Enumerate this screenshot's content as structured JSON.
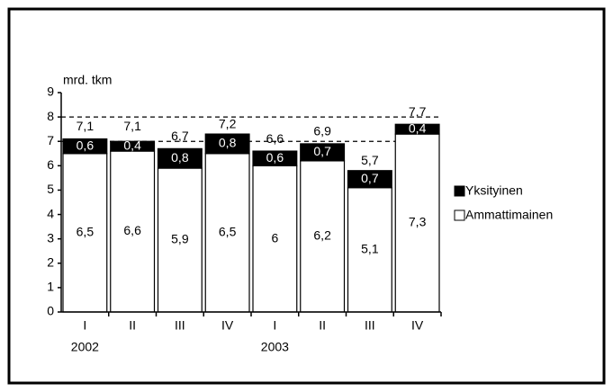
{
  "chart_data": {
    "type": "stacked_bar",
    "ylabel": "mrd. tkm",
    "categories": [
      "I",
      "II",
      "III",
      "IV",
      "I",
      "II",
      "III",
      "IV"
    ],
    "year_labels": [
      "2002",
      null,
      null,
      null,
      "2003",
      null,
      null,
      null
    ],
    "series": [
      {
        "name": "Ammattimainen",
        "color": "#ffffff",
        "label_color": "#000000",
        "values": [
          6.5,
          6.6,
          5.9,
          6.5,
          6,
          6.2,
          5.1,
          7.3
        ],
        "value_labels": [
          "6,5",
          "6,6",
          "5,9",
          "6,5",
          "6",
          "6,2",
          "5,1",
          "7,3"
        ]
      },
      {
        "name": "Yksityinen",
        "color": "#000000",
        "label_color": "#ffffff",
        "values": [
          0.6,
          0.4,
          0.8,
          0.8,
          0.6,
          0.7,
          0.7,
          0.4
        ],
        "value_labels": [
          "0,6",
          "0,4",
          "0,8",
          "0,8",
          "0,6",
          "0,7",
          "0,7",
          "0,4"
        ]
      }
    ],
    "totals": {
      "values": [
        7.1,
        7.1,
        6.7,
        7.2,
        6.6,
        6.9,
        5.7,
        7.7
      ],
      "value_labels": [
        "7,1",
        "7,1",
        "6,7",
        "7,2",
        "6,6",
        "6,9",
        "5,7",
        "7,7"
      ]
    },
    "reference_lines": [
      7,
      8
    ],
    "ylim": [
      0,
      9
    ],
    "yticks": [
      0,
      1,
      2,
      3,
      4,
      5,
      6,
      7,
      8,
      9
    ],
    "legend": "right"
  }
}
